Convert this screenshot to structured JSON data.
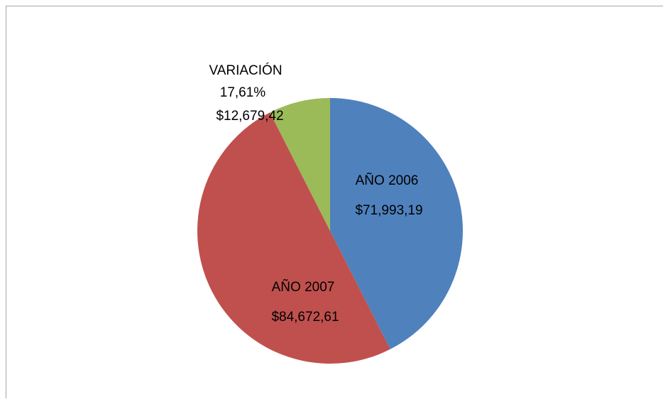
{
  "chart_data": {
    "type": "pie",
    "categories": [
      "AÑO 2006",
      "AÑO 2007",
      "VARIACIÓN"
    ],
    "values": [
      71993.19,
      84672.61,
      12679.42
    ],
    "value_labels": [
      "$71,993,19",
      "$84,672,61",
      "$12,679,42"
    ],
    "colors": [
      "#4f81bd",
      "#c0504d",
      "#9bbb59"
    ],
    "annotation": "17,61%"
  }
}
